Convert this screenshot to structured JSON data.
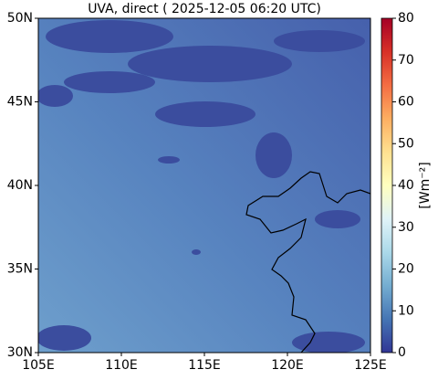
{
  "map": {
    "title": "UVA, direct ( 2025-12-05 06:20 UTC)",
    "xlim": [
      105,
      125
    ],
    "xticks": [
      {
        "value": 105,
        "label": "105E"
      },
      {
        "value": 110,
        "label": "110E"
      },
      {
        "value": 115,
        "label": "115E"
      },
      {
        "value": 120,
        "label": "120E"
      },
      {
        "value": 125,
        "label": "125E"
      }
    ],
    "ylim": [
      30,
      50
    ],
    "yticks": [
      {
        "value": 30,
        "label": "30N"
      },
      {
        "value": 35,
        "label": "35N"
      },
      {
        "value": 40,
        "label": "40N"
      },
      {
        "value": 45,
        "label": "45N"
      },
      {
        "value": 50,
        "label": "50N"
      }
    ]
  },
  "colorbar": {
    "label": "[Wm⁻²]",
    "lim": [
      0,
      80
    ],
    "ticks": [
      0,
      10,
      20,
      30,
      40,
      50,
      60,
      70,
      80
    ]
  }
}
